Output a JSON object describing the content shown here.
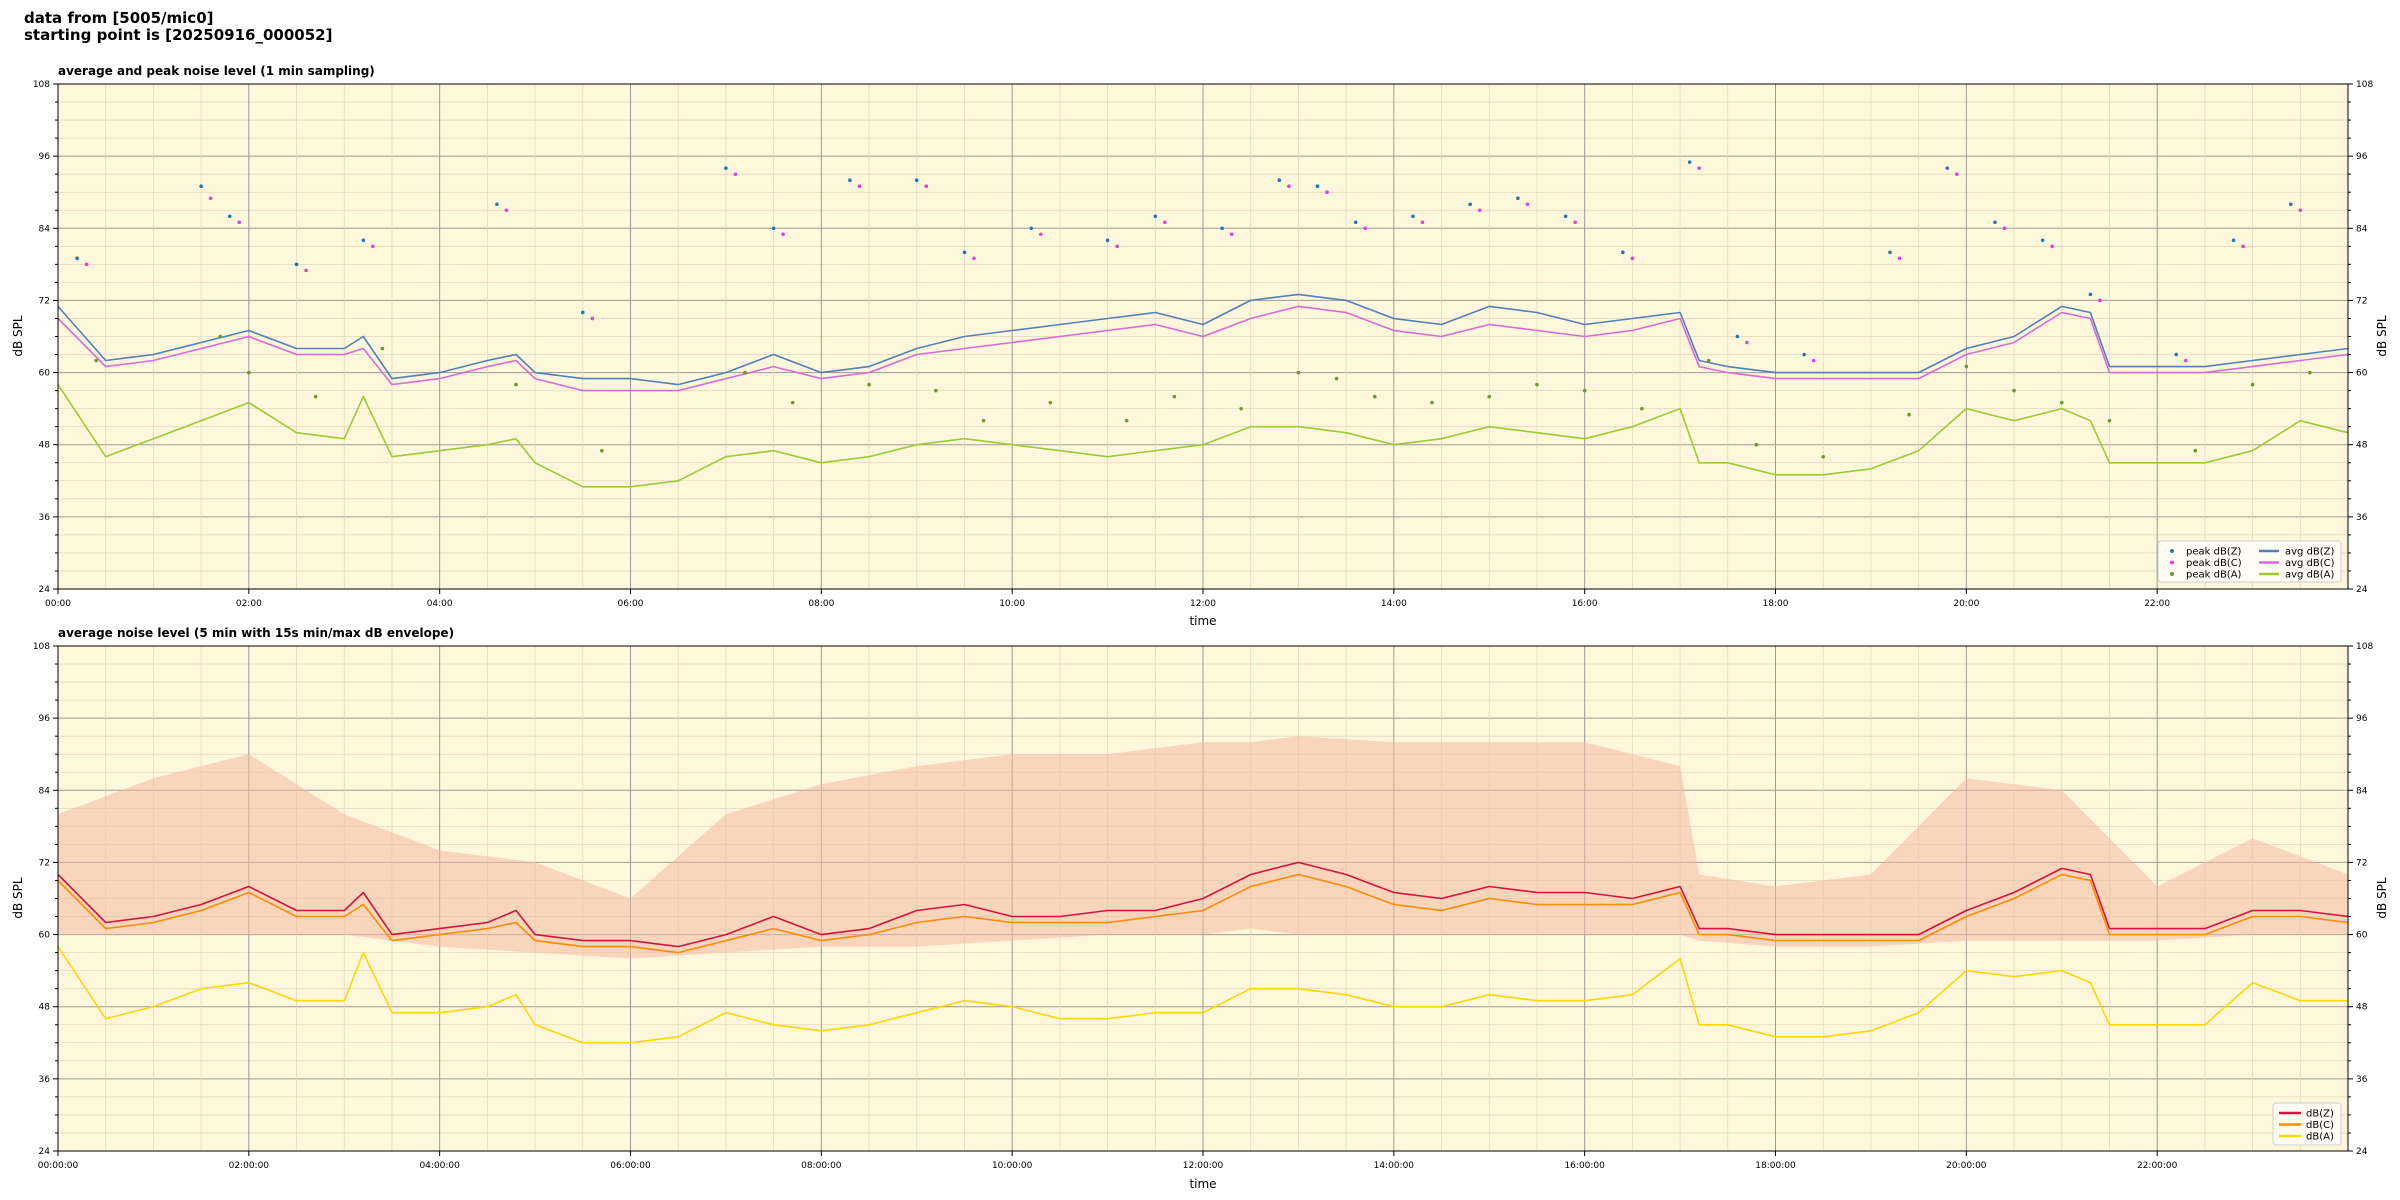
{
  "header": {
    "line1": "data from [5005/mic0]",
    "line2": "starting point is [20250916_000052]"
  },
  "colors": {
    "plot_bg": "#fff7dc",
    "grid_major": "#9a9a9a",
    "grid_minor": "#e2d9bd",
    "peak_z": "#1f77b4",
    "peak_c": "#e040e0",
    "peak_a": "#6a9a2a",
    "avg_z": "#4f81b8",
    "avg_c": "#d86ad8",
    "avg_a": "#9acd32",
    "z5": "#d6133e",
    "c5": "#ff8c00",
    "a5": "#ffd700",
    "envelope": "#f4b9a2"
  },
  "chart_data": [
    {
      "type": "scatter+line",
      "title": "average and peak noise level (1 min sampling)",
      "xlabel": "time",
      "ylabel": "dB SPL",
      "ylabel_right": "dB SPL",
      "xlim_hours": [
        0,
        24
      ],
      "ylim": [
        24,
        108
      ],
      "yticks": [
        24,
        36,
        48,
        60,
        72,
        84,
        96,
        108
      ],
      "xticks": [
        "00:00",
        "02:00",
        "04:00",
        "06:00",
        "08:00",
        "10:00",
        "12:00",
        "14:00",
        "16:00",
        "18:00",
        "20:00",
        "22:00"
      ],
      "grid": true,
      "legend_position": "lower-right",
      "legend": [
        "peak dB(Z)",
        "peak dB(C)",
        "peak dB(A)",
        "avg dB(Z)",
        "avg dB(C)",
        "avg dB(A)"
      ],
      "series": [
        {
          "name": "avg dB(Z)",
          "x": [
            0,
            0.5,
            1,
            1.5,
            2,
            2.5,
            3,
            3.2,
            3.5,
            4,
            4.5,
            4.8,
            5,
            5.5,
            6,
            6.5,
            7,
            7.5,
            8,
            8.5,
            9,
            9.5,
            10,
            10.5,
            11,
            11.5,
            12,
            12.5,
            13,
            13.5,
            14,
            14.5,
            15,
            15.5,
            16,
            16.5,
            17,
            17.2,
            17.5,
            18,
            18.5,
            19,
            19.5,
            20,
            20.5,
            21,
            21.3,
            21.5,
            22,
            22.5,
            23,
            23.5,
            24
          ],
          "values": [
            71,
            62,
            63,
            65,
            67,
            64,
            64,
            66,
            59,
            60,
            62,
            63,
            60,
            59,
            59,
            58,
            60,
            63,
            60,
            61,
            64,
            66,
            67,
            68,
            69,
            70,
            68,
            72,
            73,
            72,
            69,
            68,
            71,
            70,
            68,
            69,
            70,
            62,
            61,
            60,
            60,
            60,
            60,
            64,
            66,
            71,
            70,
            61,
            61,
            61,
            62,
            63,
            64
          ]
        },
        {
          "name": "avg dB(C)",
          "x": [
            0,
            0.5,
            1,
            1.5,
            2,
            2.5,
            3,
            3.2,
            3.5,
            4,
            4.5,
            4.8,
            5,
            5.5,
            6,
            6.5,
            7,
            7.5,
            8,
            8.5,
            9,
            9.5,
            10,
            10.5,
            11,
            11.5,
            12,
            12.5,
            13,
            13.5,
            14,
            14.5,
            15,
            15.5,
            16,
            16.5,
            17,
            17.2,
            17.5,
            18,
            18.5,
            19,
            19.5,
            20,
            20.5,
            21,
            21.3,
            21.5,
            22,
            22.5,
            23,
            23.5,
            24
          ],
          "values": [
            69,
            61,
            62,
            64,
            66,
            63,
            63,
            64,
            58,
            59,
            61,
            62,
            59,
            57,
            57,
            57,
            59,
            61,
            59,
            60,
            63,
            64,
            65,
            66,
            67,
            68,
            66,
            69,
            71,
            70,
            67,
            66,
            68,
            67,
            66,
            67,
            69,
            61,
            60,
            59,
            59,
            59,
            59,
            63,
            65,
            70,
            69,
            60,
            60,
            60,
            61,
            62,
            63
          ]
        },
        {
          "name": "avg dB(A)",
          "x": [
            0,
            0.5,
            1,
            1.5,
            2,
            2.5,
            3,
            3.2,
            3.5,
            4,
            4.5,
            4.8,
            5,
            5.5,
            6,
            6.5,
            7,
            7.5,
            8,
            8.5,
            9,
            9.5,
            10,
            10.5,
            11,
            11.5,
            12,
            12.5,
            13,
            13.5,
            14,
            14.5,
            15,
            15.5,
            16,
            16.5,
            17,
            17.2,
            17.5,
            18,
            18.5,
            19,
            19.5,
            20,
            20.5,
            21,
            21.3,
            21.5,
            22,
            22.5,
            23,
            23.5,
            24
          ],
          "values": [
            58,
            46,
            49,
            52,
            55,
            50,
            49,
            56,
            46,
            47,
            48,
            49,
            45,
            41,
            41,
            42,
            46,
            47,
            45,
            46,
            48,
            49,
            48,
            47,
            46,
            47,
            48,
            51,
            51,
            50,
            48,
            49,
            51,
            50,
            49,
            51,
            54,
            45,
            45,
            43,
            43,
            44,
            47,
            54,
            52,
            54,
            52,
            45,
            45,
            45,
            47,
            52,
            50
          ]
        },
        {
          "name": "peak dB(Z)",
          "x": [
            0.2,
            1.5,
            1.8,
            2.5,
            3.2,
            4.6,
            5.5,
            7.0,
            7.5,
            8.3,
            9.0,
            9.5,
            10.2,
            11.0,
            11.5,
            12.2,
            12.8,
            13.2,
            13.6,
            14.2,
            14.8,
            15.3,
            15.8,
            16.4,
            17.1,
            17.6,
            18.3,
            19.2,
            19.8,
            20.3,
            20.8,
            21.3,
            22.2,
            22.8,
            23.4
          ],
          "values": [
            79,
            91,
            86,
            78,
            82,
            88,
            70,
            94,
            84,
            92,
            92,
            80,
            84,
            82,
            86,
            84,
            92,
            91,
            85,
            86,
            88,
            89,
            86,
            80,
            95,
            66,
            63,
            80,
            94,
            85,
            82,
            73,
            63,
            82,
            88
          ]
        },
        {
          "name": "peak dB(C)",
          "x": [
            0.3,
            1.6,
            1.9,
            2.6,
            3.3,
            4.7,
            5.6,
            7.1,
            7.6,
            8.4,
            9.1,
            9.6,
            10.3,
            11.1,
            11.6,
            12.3,
            12.9,
            13.3,
            13.7,
            14.3,
            14.9,
            15.4,
            15.9,
            16.5,
            17.2,
            17.7,
            18.4,
            19.3,
            19.9,
            20.4,
            20.9,
            21.4,
            22.3,
            22.9,
            23.5
          ],
          "values": [
            78,
            89,
            85,
            77,
            81,
            87,
            69,
            93,
            83,
            91,
            91,
            79,
            83,
            81,
            85,
            83,
            91,
            90,
            84,
            85,
            87,
            88,
            85,
            79,
            94,
            65,
            62,
            79,
            93,
            84,
            81,
            72,
            62,
            81,
            87
          ]
        },
        {
          "name": "peak dB(A)",
          "x": [
            0.4,
            1.7,
            2.0,
            2.7,
            3.4,
            4.8,
            5.7,
            7.2,
            7.7,
            8.5,
            9.2,
            9.7,
            10.4,
            11.2,
            11.7,
            12.4,
            13.0,
            13.4,
            13.8,
            14.4,
            15.0,
            15.5,
            16.0,
            16.6,
            17.3,
            17.8,
            18.5,
            19.4,
            20.0,
            20.5,
            21.0,
            21.5,
            22.4,
            23.0,
            23.6
          ],
          "values": [
            62,
            66,
            60,
            56,
            64,
            58,
            47,
            60,
            55,
            58,
            57,
            52,
            55,
            52,
            56,
            54,
            60,
            59,
            56,
            55,
            56,
            58,
            57,
            54,
            62,
            48,
            46,
            53,
            61,
            57,
            55,
            52,
            47,
            58,
            60
          ]
        }
      ]
    },
    {
      "type": "line+area",
      "title": "average noise level (5 min with 15s min/max dB envelope)",
      "xlabel": "time",
      "ylabel": "dB SPL",
      "ylabel_right": "dB SPL",
      "xlim_hours": [
        0,
        24
      ],
      "ylim": [
        24,
        108
      ],
      "yticks": [
        24,
        36,
        48,
        60,
        72,
        84,
        96,
        108
      ],
      "xticks": [
        "00:00:00",
        "02:00:00",
        "04:00:00",
        "06:00:00",
        "08:00:00",
        "10:00:00",
        "12:00:00",
        "14:00:00",
        "16:00:00",
        "18:00:00",
        "20:00:00",
        "22:00:00"
      ],
      "grid": true,
      "legend_position": "lower-right",
      "legend": [
        "dB(Z)",
        "dB(C)",
        "dB(A)"
      ],
      "series": [
        {
          "name": "dB(Z)",
          "x": [
            0,
            0.5,
            1,
            1.5,
            2,
            2.5,
            3,
            3.2,
            3.5,
            4,
            4.5,
            4.8,
            5,
            5.5,
            6,
            6.5,
            7,
            7.5,
            8,
            8.5,
            9,
            9.5,
            10,
            10.5,
            11,
            11.5,
            12,
            12.5,
            13,
            13.5,
            14,
            14.5,
            15,
            15.5,
            16,
            16.5,
            17,
            17.2,
            17.5,
            18,
            18.5,
            19,
            19.5,
            20,
            20.5,
            21,
            21.3,
            21.5,
            22,
            22.5,
            23,
            23.5,
            24
          ],
          "values": [
            70,
            62,
            63,
            65,
            68,
            64,
            64,
            67,
            60,
            61,
            62,
            64,
            60,
            59,
            59,
            58,
            60,
            63,
            60,
            61,
            64,
            65,
            63,
            63,
            64,
            64,
            66,
            70,
            72,
            70,
            67,
            66,
            68,
            67,
            67,
            66,
            68,
            61,
            61,
            60,
            60,
            60,
            60,
            64,
            67,
            71,
            70,
            61,
            61,
            61,
            64,
            64,
            63
          ]
        },
        {
          "name": "dB(C)",
          "x": [
            0,
            0.5,
            1,
            1.5,
            2,
            2.5,
            3,
            3.2,
            3.5,
            4,
            4.5,
            4.8,
            5,
            5.5,
            6,
            6.5,
            7,
            7.5,
            8,
            8.5,
            9,
            9.5,
            10,
            10.5,
            11,
            11.5,
            12,
            12.5,
            13,
            13.5,
            14,
            14.5,
            15,
            15.5,
            16,
            16.5,
            17,
            17.2,
            17.5,
            18,
            18.5,
            19,
            19.5,
            20,
            20.5,
            21,
            21.3,
            21.5,
            22,
            22.5,
            23,
            23.5,
            24
          ],
          "values": [
            69,
            61,
            62,
            64,
            67,
            63,
            63,
            65,
            59,
            60,
            61,
            62,
            59,
            58,
            58,
            57,
            59,
            61,
            59,
            60,
            62,
            63,
            62,
            62,
            62,
            63,
            64,
            68,
            70,
            68,
            65,
            64,
            66,
            65,
            65,
            65,
            67,
            60,
            60,
            59,
            59,
            59,
            59,
            63,
            66,
            70,
            69,
            60,
            60,
            60,
            63,
            63,
            62
          ]
        },
        {
          "name": "dB(A)",
          "x": [
            0,
            0.5,
            1,
            1.5,
            2,
            2.5,
            3,
            3.2,
            3.5,
            4,
            4.5,
            4.8,
            5,
            5.5,
            6,
            6.5,
            7,
            7.5,
            8,
            8.5,
            9,
            9.5,
            10,
            10.5,
            11,
            11.5,
            12,
            12.5,
            13,
            13.5,
            14,
            14.5,
            15,
            15.5,
            16,
            16.5,
            17,
            17.2,
            17.5,
            18,
            18.5,
            19,
            19.5,
            20,
            20.5,
            21,
            21.3,
            21.5,
            22,
            22.5,
            23,
            23.5,
            24
          ],
          "values": [
            58,
            46,
            48,
            51,
            52,
            49,
            49,
            57,
            47,
            47,
            48,
            50,
            45,
            42,
            42,
            43,
            47,
            45,
            44,
            45,
            47,
            49,
            48,
            46,
            46,
            47,
            47,
            51,
            51,
            50,
            48,
            48,
            50,
            49,
            49,
            50,
            56,
            45,
            45,
            43,
            43,
            44,
            47,
            54,
            53,
            54,
            52,
            45,
            45,
            45,
            52,
            49,
            49
          ]
        },
        {
          "name": "envelope max",
          "x": [
            0,
            1,
            2,
            3,
            4,
            5,
            6,
            7,
            8,
            9,
            10,
            11,
            12,
            12.5,
            13,
            14,
            15,
            16,
            17,
            17.2,
            18,
            19,
            20,
            21,
            22,
            23,
            24
          ],
          "values": [
            80,
            86,
            90,
            80,
            74,
            72,
            66,
            80,
            85,
            88,
            90,
            90,
            92,
            92,
            93,
            92,
            92,
            92,
            88,
            70,
            68,
            70,
            86,
            84,
            68,
            76,
            70
          ]
        },
        {
          "name": "envelope min",
          "x": [
            0,
            1,
            2,
            3,
            4,
            5,
            6,
            7,
            8,
            9,
            10,
            11,
            12,
            12.5,
            13,
            14,
            15,
            16,
            17,
            17.2,
            18,
            19,
            20,
            21,
            22,
            23,
            24
          ],
          "values": [
            60,
            60,
            60,
            60,
            58,
            57,
            56,
            57,
            58,
            58,
            59,
            60,
            60,
            61,
            60,
            60,
            60,
            60,
            60,
            59,
            58,
            58,
            59,
            59,
            59,
            60,
            60
          ]
        }
      ]
    }
  ]
}
